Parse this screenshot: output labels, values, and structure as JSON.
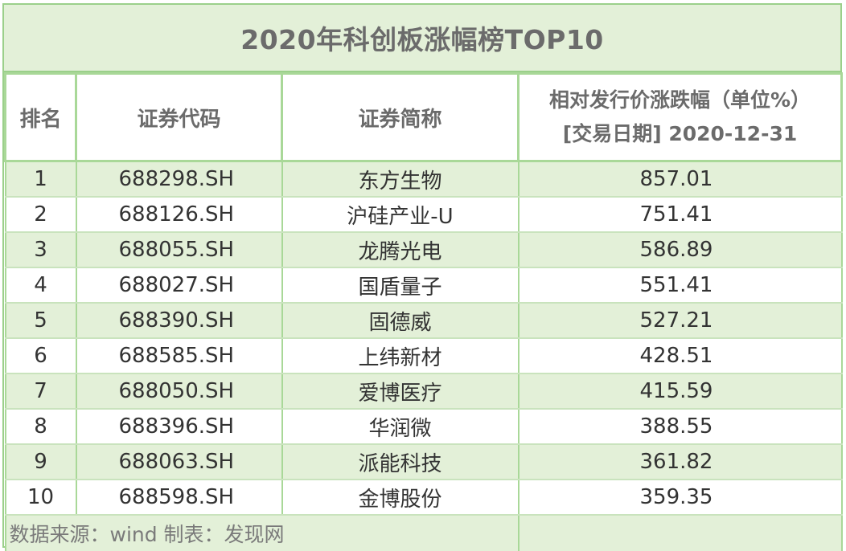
{
  "title": "2020年科创板涨幅榜TOP10",
  "headers": {
    "rank": "排名",
    "code": "证券代码",
    "name": "证券简称",
    "metric_line1": "相对发行价涨跌幅（单位%）",
    "metric_line2": "[交易日期] 2020-12-31"
  },
  "rows": [
    {
      "rank": "1",
      "code": "688298.SH",
      "name": "东方生物",
      "value": "857.01"
    },
    {
      "rank": "2",
      "code": "688126.SH",
      "name": "沪硅产业-U",
      "value": "751.41"
    },
    {
      "rank": "3",
      "code": "688055.SH",
      "name": "龙腾光电",
      "value": "586.89"
    },
    {
      "rank": "4",
      "code": "688027.SH",
      "name": "国盾量子",
      "value": "551.41"
    },
    {
      "rank": "5",
      "code": "688390.SH",
      "name": "固德威",
      "value": "527.21"
    },
    {
      "rank": "6",
      "code": "688585.SH",
      "name": "上纬新材",
      "value": "428.51"
    },
    {
      "rank": "7",
      "code": "688050.SH",
      "name": "爱博医疗",
      "value": "415.59"
    },
    {
      "rank": "8",
      "code": "688396.SH",
      "name": "华润微",
      "value": "388.55"
    },
    {
      "rank": "9",
      "code": "688063.SH",
      "name": "派能科技",
      "value": "361.82"
    },
    {
      "rank": "10",
      "code": "688598.SH",
      "name": "金博股份",
      "value": "359.35"
    }
  ],
  "footer": "数据来源：wind  制表：发现网"
}
